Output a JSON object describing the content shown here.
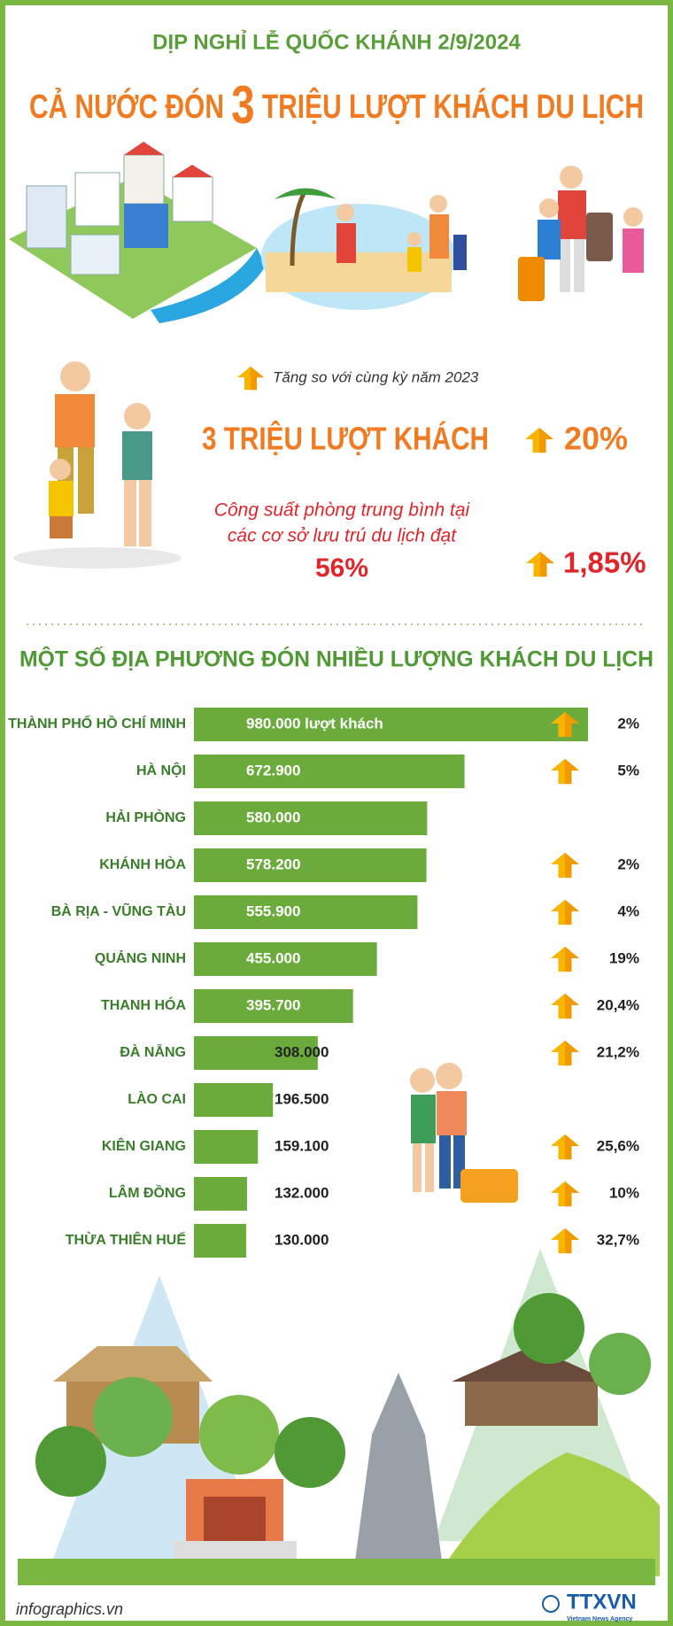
{
  "header": {
    "subtitle": "DỊP NGHỈ LỄ QUỐC KHÁNH 2/9/2024",
    "title_before": "CẢ NƯỚC ĐÓN",
    "title_number": "3",
    "title_after": "TRIỆU LƯỢT KHÁCH DU LỊCH"
  },
  "stats": {
    "note": "Tăng so với cùng kỳ năm 2023",
    "visitors": "3 TRIỆU LƯỢT KHÁCH",
    "visitors_growth": "20%",
    "occupancy_text": [
      "Công suất phòng trung bình tại",
      "các cơ sở lưu trú du lịch đạt"
    ],
    "occupancy": "56%",
    "occupancy_growth": "1,85%"
  },
  "chart_data": {
    "type": "bar",
    "orientation": "horizontal",
    "title": "MỘT SỐ ĐỊA PHƯƠNG ĐÓN NHIỀU LƯỢNG KHÁCH DU LỊCH",
    "categories": [
      "THÀNH PHỐ HỒ CHÍ MINH",
      "HÀ NỘI",
      "HẢI PHÒNG",
      "KHÁNH HÒA",
      "BÀ RỊA - VŨNG TÀU",
      "QUẢNG NINH",
      "THANH HÓA",
      "ĐÀ NẴNG",
      "LÀO CAI",
      "KIÊN GIANG",
      "LÂM ĐỒNG",
      "THỪA THIÊN HUẾ"
    ],
    "values": [
      980000,
      672900,
      580000,
      578200,
      555900,
      455000,
      395700,
      308000,
      196500,
      159100,
      132000,
      130000
    ],
    "value_labels": [
      "980.000 lượt khách",
      "672.900",
      "580.000",
      "578.200",
      "555.900",
      "455.000",
      "395.700",
      "308.000",
      "196.500",
      "159.100",
      "132.000",
      "130.000"
    ],
    "growth_labels": [
      "2%",
      "5%",
      null,
      "2%",
      "4%",
      "19%",
      "20,4%",
      "21,2%",
      null,
      "25,6%",
      "10%",
      "32,7%"
    ],
    "color": "#6aab3c"
  },
  "footer": {
    "source": "infographics.vn",
    "logo": "TTXVN",
    "logo_sub": "Vietnam News Agency"
  }
}
